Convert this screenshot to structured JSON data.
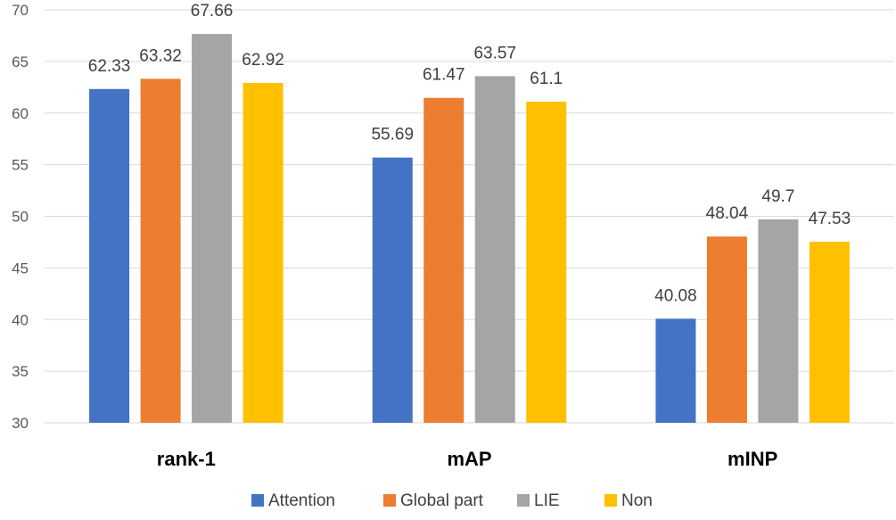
{
  "chart_data": {
    "type": "bar",
    "categories": [
      "rank-1",
      "mAP",
      "mINP"
    ],
    "series": [
      {
        "name": "Attention",
        "color": "#4472c4",
        "values": [
          62.33,
          55.69,
          40.08
        ]
      },
      {
        "name": "Global part",
        "color": "#ed7d31",
        "values": [
          63.32,
          61.47,
          48.04
        ]
      },
      {
        "name": "LIE",
        "color": "#a5a5a5",
        "values": [
          67.66,
          63.57,
          49.7
        ]
      },
      {
        "name": "Non",
        "color": "#ffc000",
        "values": [
          62.92,
          61.1,
          47.53
        ]
      }
    ],
    "value_labels": [
      [
        "62.33",
        "55.69",
        "40.08"
      ],
      [
        "63.32",
        "61.47",
        "48.04"
      ],
      [
        "67.66",
        "63.57",
        "49.7"
      ],
      [
        "62.92",
        "61.1",
        "47.53"
      ]
    ],
    "y_ticks": [
      "30",
      "35",
      "40",
      "45",
      "50",
      "55",
      "60",
      "65",
      "70"
    ],
    "ylim": [
      30,
      70
    ],
    "title": "",
    "xlabel": "",
    "ylabel": "",
    "grid": true,
    "legend_position": "bottom"
  }
}
